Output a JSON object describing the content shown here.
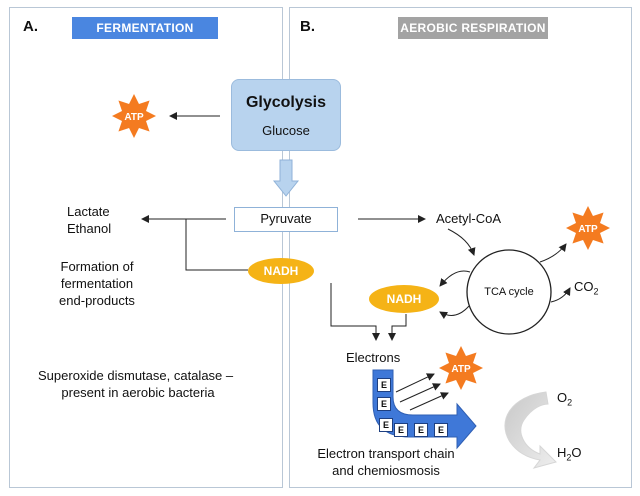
{
  "panel_a": {
    "letter": "A.",
    "header": "FERMENTATION",
    "header_color": "#4a86e0",
    "products_line1": "Lactate",
    "products_line2": "Ethanol",
    "formation_line1": "Formation of",
    "formation_line2": "fermentation",
    "formation_line3": "end-products",
    "enzymes_line1": "Superoxide dismutase, catalase –",
    "enzymes_line2": "present in aerobic bacteria"
  },
  "panel_b": {
    "letter": "B.",
    "header": "AEROBIC RESPIRATION",
    "header_color": "#a3a3a3",
    "acetyl": "Acetyl-CoA",
    "tca": "TCA cycle",
    "co2_main": "CO",
    "co2_sub": "2",
    "electrons": "Electrons",
    "etc_line1": "Electron transport chain",
    "etc_line2": "and chemiosmosis",
    "o2_main": "O",
    "o2_sub": "2",
    "h2o_h": "H",
    "h2o_sub": "2",
    "h2o_o": "O",
    "e_labels": [
      "E",
      "E",
      "E",
      "E",
      "E",
      "E"
    ]
  },
  "center": {
    "glycolysis": "Glycolysis",
    "glucose": "Glucose",
    "pyruvate": "Pyruvate",
    "nadh": "NADH",
    "nadh_color": "#f5b316"
  },
  "atp": {
    "label": "ATP",
    "color": "#f47b20"
  },
  "colors": {
    "panel_border": "#b9c7d6",
    "glycolysis_fill": "#b8d3ee",
    "etc_arrow": "#3f78d8"
  },
  "icons": [
    "atp-star-icon",
    "down-arrow-icon",
    "etc-bent-arrow-icon",
    "curved-reaction-arrow-icon"
  ]
}
